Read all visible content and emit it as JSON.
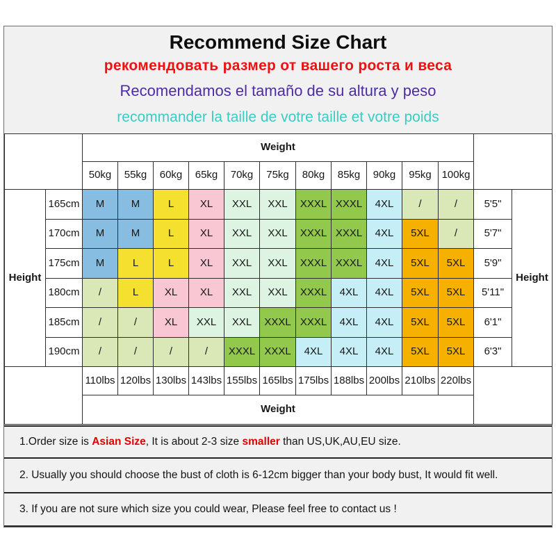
{
  "title": "Recommend Size Chart",
  "subtitles": [
    {
      "id": "ru",
      "lang": "Russian",
      "text": "рекомендовать размер от вашего роста и веса",
      "color": "#ee1111"
    },
    {
      "id": "es",
      "lang": "Spanish",
      "text": "Recomendamos el tamaño de su altura y peso",
      "color": "#4e2ba6"
    },
    {
      "id": "fr",
      "lang": "French",
      "text": "recommander la taille de votre taille et votre poids",
      "color": "#3bccc3"
    }
  ],
  "chart_data": {
    "type": "table",
    "title": "Recommend Size Chart",
    "x_axis_top_label": "Weight",
    "x_axis_bottom_label": "Weight",
    "y_axis_left_label": "Height",
    "y_axis_right_label": "Height",
    "kg_labels": [
      "50kg",
      "55kg",
      "60kg",
      "65kg",
      "70kg",
      "75kg",
      "80kg",
      "85kg",
      "90kg",
      "95kg",
      "100kg"
    ],
    "lbs_labels": [
      "110lbs",
      "120lbs",
      "130lbs",
      "143lbs",
      "155lbs",
      "165lbs",
      "175lbs",
      "188lbs",
      "200lbs",
      "210lbs",
      "220lbs"
    ],
    "cm_labels": [
      "165cm",
      "170cm",
      "175cm",
      "180cm",
      "185cm",
      "190cm"
    ],
    "ft_labels": [
      "5'5\"",
      "5'7\"",
      "5'9\"",
      "5'11\"",
      "6'1\"",
      "6'3\""
    ],
    "cell_colors": {
      "blue": "#87bde1",
      "yellow": "#f5e030",
      "pink": "#f8c7d3",
      "mint": "#ddf4e3",
      "green": "#92c94d",
      "cyan": "#c6eef7",
      "pale": "#d9e8b6",
      "orange": "#f6b000",
      "none": "#ffffff"
    },
    "rows": [
      {
        "height_cm": "165cm",
        "height_ft": "5'5\"",
        "sizes": [
          [
            "M",
            "blue"
          ],
          [
            "M",
            "blue"
          ],
          [
            "L",
            "yellow"
          ],
          [
            "XL",
            "pink"
          ],
          [
            "XXL",
            "mint"
          ],
          [
            "XXL",
            "mint"
          ],
          [
            "XXXL",
            "green"
          ],
          [
            "XXXL",
            "green"
          ],
          [
            "4XL",
            "cyan"
          ],
          [
            "/",
            "pale"
          ],
          [
            "/",
            "pale"
          ]
        ]
      },
      {
        "height_cm": "170cm",
        "height_ft": "5'7\"",
        "sizes": [
          [
            "M",
            "blue"
          ],
          [
            "M",
            "blue"
          ],
          [
            "L",
            "yellow"
          ],
          [
            "XL",
            "pink"
          ],
          [
            "XXL",
            "mint"
          ],
          [
            "XXL",
            "mint"
          ],
          [
            "XXXL",
            "green"
          ],
          [
            "XXXL",
            "green"
          ],
          [
            "4XL",
            "cyan"
          ],
          [
            "5XL",
            "orange"
          ],
          [
            "/",
            "pale"
          ]
        ]
      },
      {
        "height_cm": "175cm",
        "height_ft": "5'9\"",
        "sizes": [
          [
            "M",
            "blue"
          ],
          [
            "L",
            "yellow"
          ],
          [
            "L",
            "yellow"
          ],
          [
            "XL",
            "pink"
          ],
          [
            "XXL",
            "mint"
          ],
          [
            "XXL",
            "mint"
          ],
          [
            "XXXL",
            "green"
          ],
          [
            "XXXL",
            "green"
          ],
          [
            "4XL",
            "cyan"
          ],
          [
            "5XL",
            "orange"
          ],
          [
            "5XL",
            "orange"
          ]
        ]
      },
      {
        "height_cm": "180cm",
        "height_ft": "5'11\"",
        "sizes": [
          [
            "/",
            "pale"
          ],
          [
            "L",
            "yellow"
          ],
          [
            "XL",
            "pink"
          ],
          [
            "XL",
            "pink"
          ],
          [
            "XXL",
            "mint"
          ],
          [
            "XXL",
            "mint"
          ],
          [
            "XXXL",
            "green"
          ],
          [
            "4XL",
            "cyan"
          ],
          [
            "4XL",
            "cyan"
          ],
          [
            "5XL",
            "orange"
          ],
          [
            "5XL",
            "orange"
          ]
        ]
      },
      {
        "height_cm": "185cm",
        "height_ft": "6'1\"",
        "sizes": [
          [
            "/",
            "pale"
          ],
          [
            "/",
            "pale"
          ],
          [
            "XL",
            "pink"
          ],
          [
            "XXL",
            "mint"
          ],
          [
            "XXL",
            "mint"
          ],
          [
            "XXXL",
            "green"
          ],
          [
            "XXXL",
            "green"
          ],
          [
            "4XL",
            "cyan"
          ],
          [
            "4XL",
            "cyan"
          ],
          [
            "5XL",
            "orange"
          ],
          [
            "5XL",
            "orange"
          ]
        ]
      },
      {
        "height_cm": "190cm",
        "height_ft": "6'3\"",
        "sizes": [
          [
            "/",
            "pale"
          ],
          [
            "/",
            "pale"
          ],
          [
            "/",
            "pale"
          ],
          [
            "/",
            "pale"
          ],
          [
            "XXXL",
            "green"
          ],
          [
            "XXXL",
            "green"
          ],
          [
            "4XL",
            "cyan"
          ],
          [
            "4XL",
            "cyan"
          ],
          [
            "4XL",
            "cyan"
          ],
          [
            "5XL",
            "orange"
          ],
          [
            "5XL",
            "orange"
          ]
        ]
      }
    ]
  },
  "notes": {
    "red_color": "#e30000",
    "items": [
      {
        "parts": [
          {
            "text": "1.Order size is ",
            "red": false
          },
          {
            "text": "Asian Size",
            "red": true
          },
          {
            "text": ", It is about 2-3 size ",
            "red": false
          },
          {
            "text": "smaller",
            "red": true
          },
          {
            "text": " than US,UK,AU,EU size.",
            "red": false
          }
        ]
      },
      {
        "parts": [
          {
            "text": "2. Usually you should choose the bust of cloth is 6-12cm bigger than your body bust, It would fit well.",
            "red": false
          }
        ]
      },
      {
        "parts": [
          {
            "text": "3. If you are not sure which size you could wear, Please feel free to contact us !",
            "red": false
          }
        ]
      }
    ]
  }
}
